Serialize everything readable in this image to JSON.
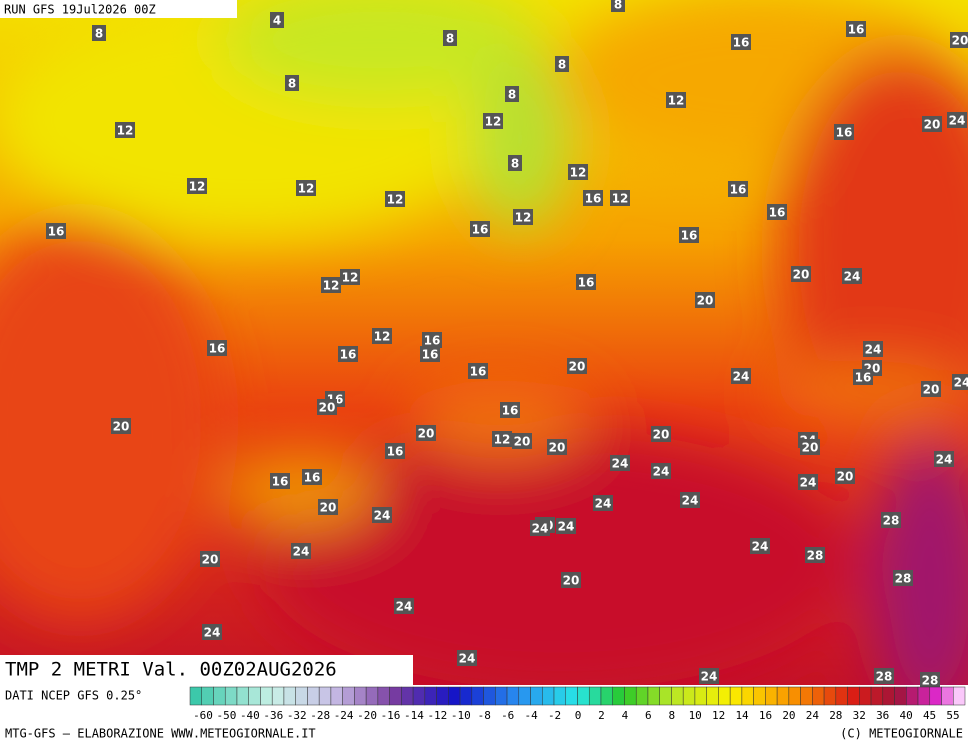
{
  "header": {
    "run": "RUN GFS 19Jul2026 00Z"
  },
  "title": "TMP 2 METRI Val. 00Z02AUG2026",
  "map": {
    "labels": [
      4,
      8,
      8,
      8,
      8,
      8,
      16,
      16,
      20,
      12,
      8,
      12,
      12,
      16,
      20,
      24,
      8,
      12,
      12,
      12,
      12,
      16,
      12,
      16,
      16,
      12,
      16,
      16,
      16,
      12,
      12,
      16,
      20,
      24,
      20,
      12,
      16,
      16,
      16,
      16,
      24,
      20,
      16,
      24,
      20,
      16,
      16,
      20,
      20,
      24,
      20,
      16,
      20,
      12,
      20,
      20,
      20,
      24,
      20,
      16,
      24,
      24,
      24,
      16,
      16,
      24,
      20,
      24,
      20,
      24,
      24,
      28,
      20,
      24,
      24,
      24,
      20,
      24,
      28,
      20,
      28,
      24,
      24,
      24,
      24,
      28,
      28
    ]
  },
  "colorbar": {
    "labels": [
      -60,
      -50,
      -40,
      -36,
      -32,
      -28,
      -24,
      -20,
      -16,
      -14,
      -12,
      -10,
      -8,
      -6,
      -4,
      -2,
      0,
      2,
      4,
      6,
      8,
      10,
      12,
      14,
      16,
      20,
      24,
      28,
      32,
      36,
      40,
      45,
      55
    ]
  },
  "footer": {
    "source": "DATI NCEP GFS 0.25°",
    "credit": "MTG-GFS — ELABORAZIONE WWW.METEOGIORNALE.IT",
    "copyright": "(C) METEOGIORNALE"
  }
}
